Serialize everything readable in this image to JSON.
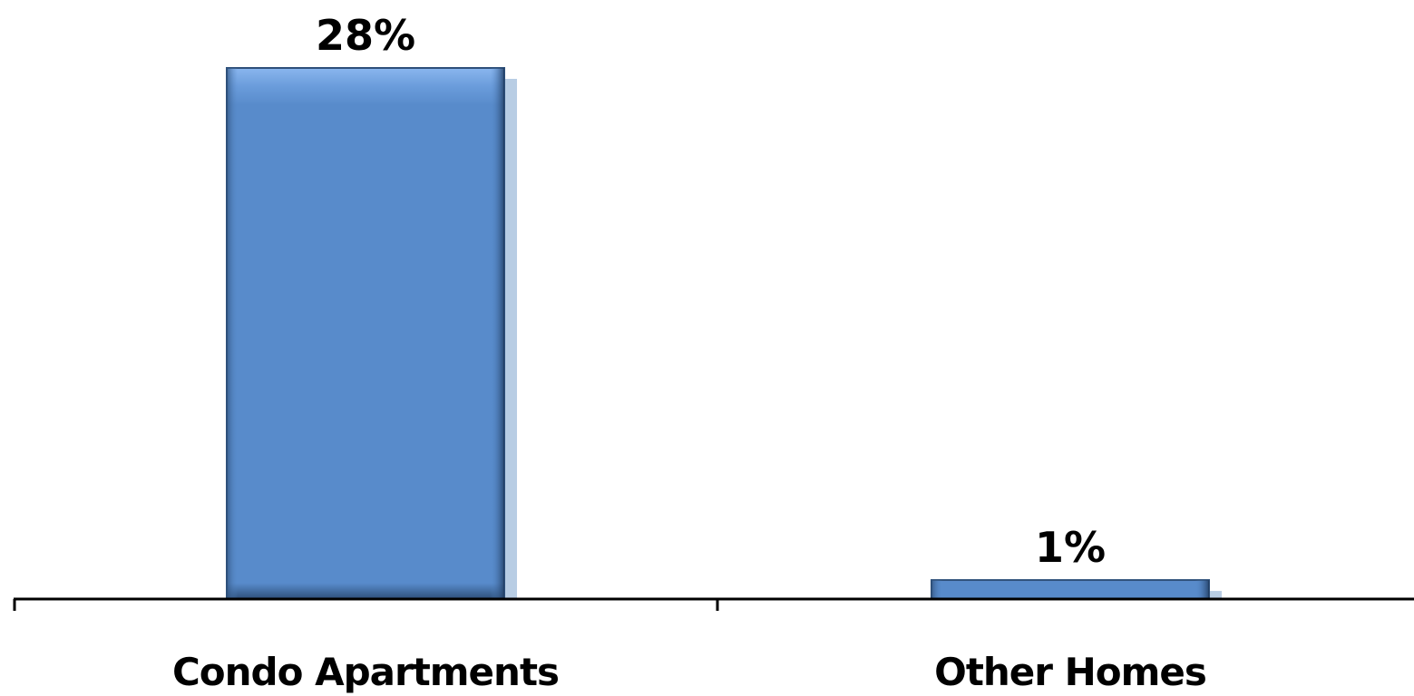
{
  "chart_data": {
    "type": "bar",
    "categories": [
      "Condo Apartments",
      "Other Homes"
    ],
    "values": [
      28,
      1
    ],
    "value_labels": [
      "28%",
      "1%"
    ],
    "unit": "%",
    "ylim": [
      0,
      28
    ],
    "grid": false,
    "legend": "none",
    "title": "",
    "xlabel": "",
    "ylabel": ""
  },
  "colors": {
    "bar_fill": "#588BCB",
    "bar_highlight": "#8AB6EE",
    "bar_dark": "#2E507A",
    "bar_shadow": "#B8CDE4",
    "axis": "#000000",
    "text": "#000000"
  }
}
